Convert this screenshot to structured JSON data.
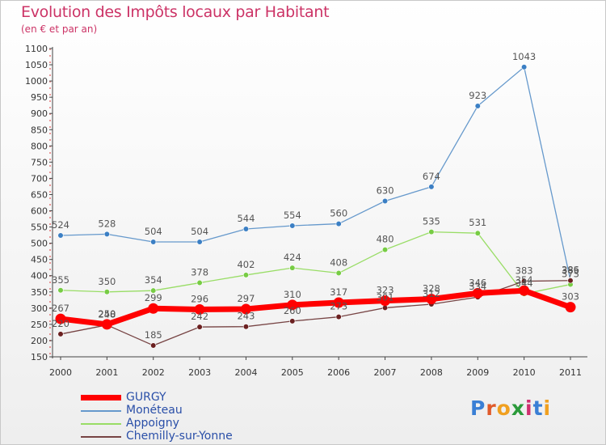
{
  "title": "Evolution des Impôts locaux par Habitant",
  "subtitle": "(en € et par an)",
  "logo": {
    "text": "Proxiti",
    "letter_colors": [
      "#3a7fd5",
      "#e05a2a",
      "#f0a020",
      "#2a9a3a",
      "#d03070",
      "#3a7fd5",
      "#f0a020"
    ]
  },
  "chart_data": {
    "type": "line",
    "x": [
      "2000",
      "2001",
      "2002",
      "2003",
      "2004",
      "2005",
      "2006",
      "2007",
      "2008",
      "2009",
      "2010",
      "2011"
    ],
    "ylim": [
      150,
      1100
    ],
    "yticks": [
      150,
      200,
      250,
      300,
      350,
      400,
      450,
      500,
      550,
      600,
      650,
      700,
      750,
      800,
      850,
      900,
      950,
      1000,
      1050,
      1100
    ],
    "grid": false,
    "legend_position": "bottom-left",
    "series": [
      {
        "name": "Moneteau_display",
        "label": "Monéteau",
        "color": "#6699cc",
        "marker": "#3b7fc4",
        "width": 1.3,
        "values": [
          524,
          528,
          504,
          504,
          544,
          554,
          560,
          630,
          674,
          923,
          1043,
          386
        ]
      },
      {
        "name": "Appoigny",
        "label": "Appoigny",
        "color": "#99dd66",
        "marker": "#77cc44",
        "width": 1.3,
        "values": [
          355,
          350,
          354,
          378,
          402,
          424,
          408,
          480,
          535,
          531,
          344,
          373
        ]
      },
      {
        "name": "Chemilly-sur-Yonne",
        "label": "Chemilly-sur-Yonne",
        "color": "#774444",
        "marker": "#6b2020",
        "width": 1.3,
        "values": [
          220,
          248,
          185,
          242,
          243,
          260,
          273,
          301,
          312,
          334,
          383,
          385
        ]
      },
      {
        "name": "GURGY",
        "label": "GURGY",
        "color": "#ff0000",
        "marker": "#ff0000",
        "width": 7,
        "values": [
          267,
          250,
          299,
          296,
          297,
          310,
          317,
          323,
          328,
          346,
          354,
          303
        ]
      }
    ],
    "data_labels": [
      {
        "series": "Moneteau_display",
        "values": [
          "524",
          "528",
          "504",
          "504",
          "544",
          "554",
          "560",
          "630",
          "674",
          "923",
          "1043",
          "386"
        ]
      },
      {
        "series": "Appoigny",
        "values": [
          "355",
          "350",
          "354",
          "378",
          "402",
          "424",
          "408",
          "480",
          "535",
          "531",
          "344",
          "373"
        ]
      },
      {
        "series": "Chemilly-sur-Yonne",
        "values": [
          "220",
          "248",
          "185",
          "242",
          "243",
          "260",
          "273",
          "301",
          "312",
          "334",
          "383",
          "385"
        ]
      },
      {
        "series": "GURGY",
        "values": [
          "267",
          "250",
          "299",
          "296",
          "297",
          "310",
          "317",
          "323",
          "328",
          "346",
          "354",
          "303"
        ]
      }
    ],
    "legend": [
      {
        "label": "GURGY",
        "color": "#ff0000",
        "thick": true
      },
      {
        "label": "Monéteau",
        "color": "#6699cc",
        "thick": false
      },
      {
        "label": "Appoigny",
        "color": "#99dd66",
        "thick": false
      },
      {
        "label": "Chemilly-sur-Yonne",
        "color": "#774444",
        "thick": false
      }
    ]
  }
}
